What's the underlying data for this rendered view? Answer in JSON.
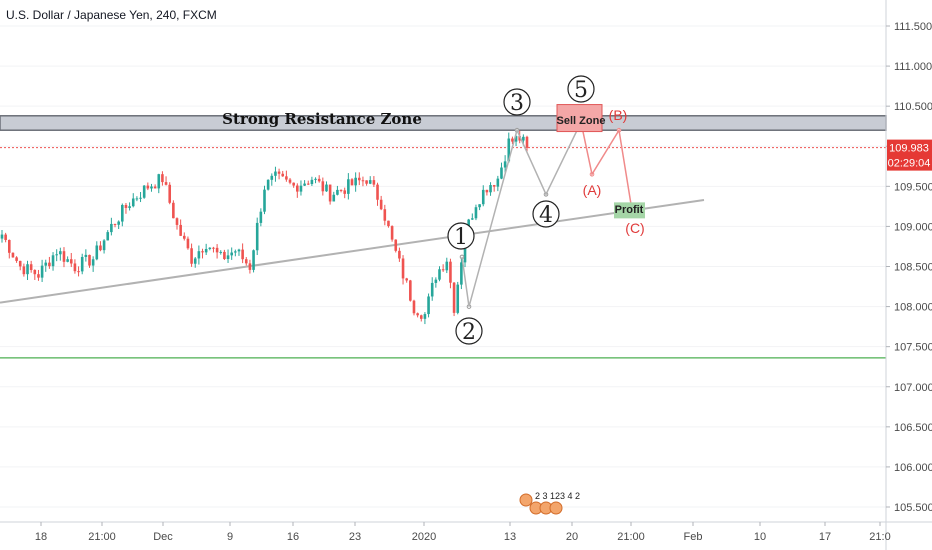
{
  "header": {
    "symbol_title": "U.S. Dollar / Japanese Yen, 240, FXCM"
  },
  "price_axis": {
    "ticks": [
      "111.500",
      "111.000",
      "110.500",
      "110.000",
      "109.500",
      "109.000",
      "108.500",
      "108.000",
      "107.500",
      "107.000",
      "106.500",
      "106.000",
      "105.500"
    ],
    "last_price": "109.983",
    "countdown": "02:29:04",
    "last_price_color": "#e53935"
  },
  "time_axis": {
    "ticks": [
      "18",
      "21:00",
      "Dec",
      "9",
      "16",
      "23",
      "2020",
      "13",
      "20",
      "21:00",
      "Feb",
      "10",
      "17",
      "21:0"
    ]
  },
  "annotations": {
    "resistance_label": "Strong Resistance Zone",
    "sell_zone_label": "Sell Zone",
    "profit_label": "Profit",
    "waves": [
      "1",
      "2",
      "3",
      "4",
      "5"
    ],
    "corrective": [
      "(A)",
      "(B)",
      "(C)"
    ],
    "events_digits": "2 3 123 4 2"
  },
  "colors": {
    "up": "#26a69a",
    "down": "#ef5350",
    "resistance_fill": "#c8ccd4",
    "support_line": "#4caf50",
    "sell_zone": "#f4a7a7",
    "profit_zone": "#a5d6a7",
    "trendline": "#b2b2b2",
    "projection_red": "#f08a8a"
  },
  "chart_data": {
    "type": "candlestick",
    "title": "U.S. Dollar / Japanese Yen, 240, FXCM",
    "ylim": [
      105.3,
      111.85
    ],
    "y_ticks": [
      105.5,
      106.0,
      106.5,
      107.0,
      107.5,
      108.0,
      108.5,
      109.0,
      109.5,
      110.0,
      110.5,
      111.0,
      111.5
    ],
    "close_path": [
      {
        "i": 0,
        "p": 108.9
      },
      {
        "i": 5,
        "p": 108.5
      },
      {
        "i": 10,
        "p": 108.4
      },
      {
        "i": 15,
        "p": 108.7
      },
      {
        "i": 20,
        "p": 108.5
      },
      {
        "i": 25,
        "p": 108.6
      },
      {
        "i": 30,
        "p": 109.0
      },
      {
        "i": 35,
        "p": 109.3
      },
      {
        "i": 40,
        "p": 109.5
      },
      {
        "i": 44,
        "p": 109.6
      },
      {
        "i": 48,
        "p": 109.0
      },
      {
        "i": 52,
        "p": 108.6
      },
      {
        "i": 56,
        "p": 108.8
      },
      {
        "i": 60,
        "p": 108.6
      },
      {
        "i": 64,
        "p": 108.7
      },
      {
        "i": 68,
        "p": 108.5
      },
      {
        "i": 72,
        "p": 109.5
      },
      {
        "i": 75,
        "p": 109.6
      },
      {
        "i": 80,
        "p": 109.5
      },
      {
        "i": 85,
        "p": 109.6
      },
      {
        "i": 90,
        "p": 109.4
      },
      {
        "i": 95,
        "p": 109.5
      },
      {
        "i": 100,
        "p": 109.6
      },
      {
        "i": 104,
        "p": 109.3
      },
      {
        "i": 107,
        "p": 108.8
      },
      {
        "i": 110,
        "p": 108.4
      },
      {
        "i": 113,
        "p": 108.0
      },
      {
        "i": 116,
        "p": 107.9
      },
      {
        "i": 119,
        "p": 108.4
      },
      {
        "i": 122,
        "p": 108.6
      },
      {
        "i": 124,
        "p": 108.0
      },
      {
        "i": 127,
        "p": 108.9
      },
      {
        "i": 130,
        "p": 109.3
      },
      {
        "i": 133,
        "p": 109.5
      },
      {
        "i": 136,
        "p": 109.6
      },
      {
        "i": 139,
        "p": 110.05
      },
      {
        "i": 142,
        "p": 110.1
      },
      {
        "i": 144,
        "p": 109.98
      }
    ],
    "resistance_zone": [
      110.2,
      110.38
    ],
    "support_level": 107.36,
    "last_price": 109.983,
    "trendline": [
      {
        "t": 0,
        "p": 108.05
      },
      {
        "t": 1,
        "p": 109.33
      }
    ],
    "wave_points": {
      "1": 108.62,
      "2": 108.0,
      "3": 110.2,
      "4": 109.4,
      "5": 110.3,
      "A": 109.65,
      "B": 110.2,
      "C": 109.2
    },
    "time_ticks": [
      "18",
      "21:00",
      "Dec",
      "9",
      "16",
      "23",
      "2020",
      "13",
      "20",
      "21:00",
      "Feb",
      "10",
      "17",
      "21:0"
    ]
  }
}
